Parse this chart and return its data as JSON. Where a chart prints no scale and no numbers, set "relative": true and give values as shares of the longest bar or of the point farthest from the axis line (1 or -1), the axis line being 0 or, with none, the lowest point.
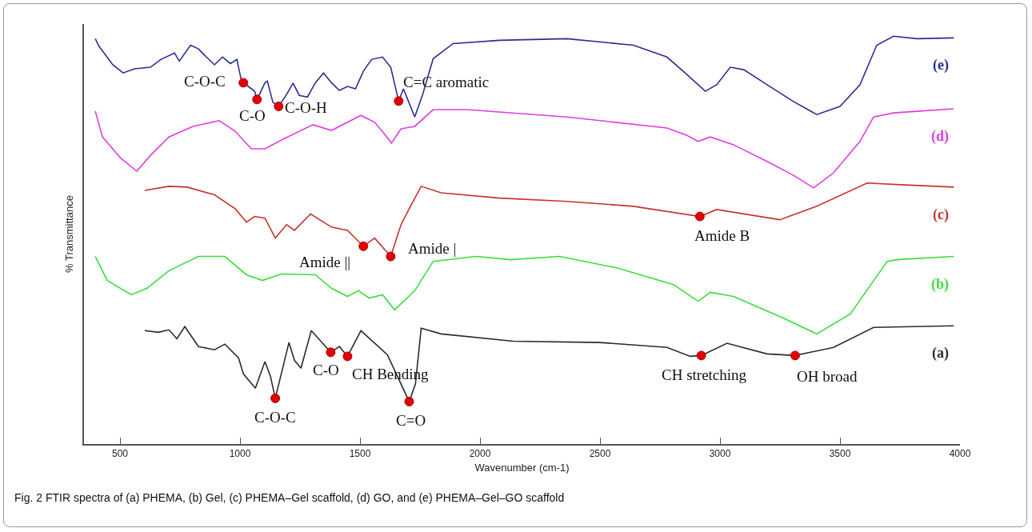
{
  "chart_data": {
    "type": "line",
    "relative": true,
    "xlabel": "Wavenumber (cm-1)",
    "ylabel": "% Transmittance",
    "xlim": [
      350,
      4000
    ],
    "xticks": [
      500,
      1000,
      1500,
      2000,
      2500,
      3000,
      3500,
      4000
    ],
    "grid": false,
    "legend": false,
    "line_style": "solid",
    "marker": "none",
    "series": [
      {
        "name": "(e)",
        "color": "#2a2f8f",
        "x": [
          397,
          413,
          470,
          513,
          560,
          627,
          670,
          727,
          747,
          794,
          827,
          860,
          894,
          927,
          960,
          987,
          1004,
          1014,
          1061,
          1071,
          1104,
          1114,
          1137,
          1161,
          1194,
          1221,
          1247,
          1281,
          1314,
          1348,
          1381,
          1414,
          1448,
          1481,
          1514,
          1548,
          1594,
          1628,
          1661,
          1681,
          1728,
          1761,
          1805,
          1888,
          2082,
          2362,
          2639,
          2779,
          2862,
          2939,
          2986,
          3043,
          3099,
          3196,
          3306,
          3403,
          3500,
          3583,
          3653,
          3723,
          3820,
          3974
        ],
        "values": [
          0.994,
          0.975,
          0.93,
          0.91,
          0.92,
          0.924,
          0.943,
          0.959,
          0.939,
          0.978,
          0.969,
          0.949,
          0.93,
          0.949,
          0.933,
          0.943,
          0.896,
          0.886,
          0.865,
          0.845,
          0.886,
          0.89,
          0.838,
          0.828,
          0.857,
          0.885,
          0.855,
          0.851,
          0.886,
          0.91,
          0.886,
          0.867,
          0.877,
          0.871,
          0.914,
          0.943,
          0.949,
          0.924,
          0.841,
          0.871,
          0.802,
          0.857,
          0.945,
          0.982,
          0.99,
          0.994,
          0.978,
          0.949,
          0.906,
          0.865,
          0.881,
          0.924,
          0.918,
          0.881,
          0.84,
          0.808,
          0.828,
          0.881,
          0.978,
          1,
          0.994,
          0.996
        ]
      },
      {
        "name": "(d)",
        "color": "#e03ce0",
        "x": [
          397,
          427,
          503,
          570,
          627,
          704,
          804,
          914,
          980,
          1047,
          1104,
          1181,
          1304,
          1381,
          1504,
          1561,
          1604,
          1631,
          1671,
          1728,
          1805,
          1945,
          2362,
          2779,
          2862,
          2909,
          2959,
          3056,
          3196,
          3306,
          3390,
          3473,
          3583,
          3640,
          3723,
          3820,
          3974
        ],
        "values": [
          0.816,
          0.753,
          0.701,
          0.669,
          0.708,
          0.753,
          0.779,
          0.793,
          0.767,
          0.724,
          0.724,
          0.748,
          0.783,
          0.769,
          0.806,
          0.789,
          0.759,
          0.738,
          0.773,
          0.779,
          0.82,
          0.82,
          0.802,
          0.775,
          0.757,
          0.742,
          0.753,
          0.734,
          0.693,
          0.659,
          0.628,
          0.665,
          0.742,
          0.802,
          0.812,
          0.816,
          0.822
        ]
      },
      {
        "name": "(c)",
        "color": "#c8322c",
        "x": [
          603,
          704,
          780,
          894,
          980,
          1027,
          1061,
          1104,
          1147,
          1194,
          1227,
          1294,
          1381,
          1448,
          1514,
          1561,
          1628,
          1671,
          1705,
          1755,
          1838,
          2082,
          2362,
          2639,
          2916,
          2986,
          3249,
          3403,
          3613,
          3750,
          3974
        ],
        "values": [
          0.622,
          0.632,
          0.63,
          0.611,
          0.577,
          0.544,
          0.558,
          0.554,
          0.505,
          0.538,
          0.524,
          0.564,
          0.532,
          0.524,
          0.485,
          0.505,
          0.46,
          0.538,
          0.577,
          0.632,
          0.616,
          0.603,
          0.595,
          0.583,
          0.558,
          0.575,
          0.55,
          0.583,
          0.64,
          0.636,
          0.63
        ]
      },
      {
        "name": "(b)",
        "color": "#3cdc3c",
        "x": [
          397,
          447,
          547,
          613,
          704,
          827,
          937,
          1027,
          1094,
          1171,
          1314,
          1381,
          1448,
          1494,
          1538,
          1594,
          1644,
          1728,
          1805,
          1985,
          2125,
          2332,
          2569,
          2806,
          2909,
          2959,
          3056,
          3263,
          3403,
          3543,
          3697,
          3737,
          3974
        ],
        "values": [
          0.46,
          0.401,
          0.366,
          0.382,
          0.425,
          0.46,
          0.46,
          0.415,
          0.401,
          0.417,
          0.415,
          0.382,
          0.362,
          0.376,
          0.358,
          0.366,
          0.329,
          0.376,
          0.448,
          0.46,
          0.452,
          0.46,
          0.432,
          0.391,
          0.35,
          0.372,
          0.362,
          0.309,
          0.27,
          0.319,
          0.448,
          0.452,
          0.46
        ]
      },
      {
        "name": "(a)",
        "color": "#2b2b2b",
        "x": [
          603,
          660,
          704,
          737,
          770,
          827,
          894,
          937,
          994,
          1014,
          1064,
          1104,
          1127,
          1147,
          1204,
          1227,
          1254,
          1297,
          1378,
          1414,
          1448,
          1504,
          1614,
          1705,
          1731,
          1755,
          1838,
          2138,
          2499,
          2779,
          2876,
          2922,
          3029,
          3196,
          3313,
          3473,
          3640,
          3974
        ],
        "values": [
          0.278,
          0.274,
          0.28,
          0.258,
          0.288,
          0.239,
          0.231,
          0.245,
          0.211,
          0.172,
          0.137,
          0.202,
          0.166,
          0.112,
          0.249,
          0.205,
          0.186,
          0.278,
          0.225,
          0.239,
          0.215,
          0.278,
          0.219,
          0.104,
          0.147,
          0.284,
          0.27,
          0.252,
          0.249,
          0.237,
          0.215,
          0.217,
          0.247,
          0.221,
          0.217,
          0.237,
          0.286,
          0.29
        ]
      }
    ],
    "annotations": [
      {
        "text": "C-O-C",
        "x": 1014,
        "y": 0.886
      },
      {
        "text": "C-O",
        "x": 1071,
        "y": 0.845
      },
      {
        "text": "C-O-H",
        "x": 1161,
        "y": 0.828
      },
      {
        "text": "C=C aromatic",
        "x": 1661,
        "y": 0.841
      },
      {
        "text": "Amide ||",
        "x": 1514,
        "y": 0.485
      },
      {
        "text": "Amide |",
        "x": 1628,
        "y": 0.46
      },
      {
        "text": "Amide B",
        "x": 2916,
        "y": 0.558
      },
      {
        "text": "C-O-C",
        "x": 1147,
        "y": 0.112
      },
      {
        "text": "C-O",
        "x": 1378,
        "y": 0.225
      },
      {
        "text": "CH Bending",
        "x": 1448,
        "y": 0.215
      },
      {
        "text": "C=O",
        "x": 1705,
        "y": 0.104
      },
      {
        "text": "CH stretching",
        "x": 2922,
        "y": 0.217
      },
      {
        "text": "OH broad",
        "x": 3313,
        "y": 0.217
      },
      "Fig. 2  FTIR spectra of (a) PHEMA, (b) Gel, (c) PHEMA–Gel scaffold, (d) GO, and (e) PHEMA–Gel–GO scaffold"
    ]
  }
}
